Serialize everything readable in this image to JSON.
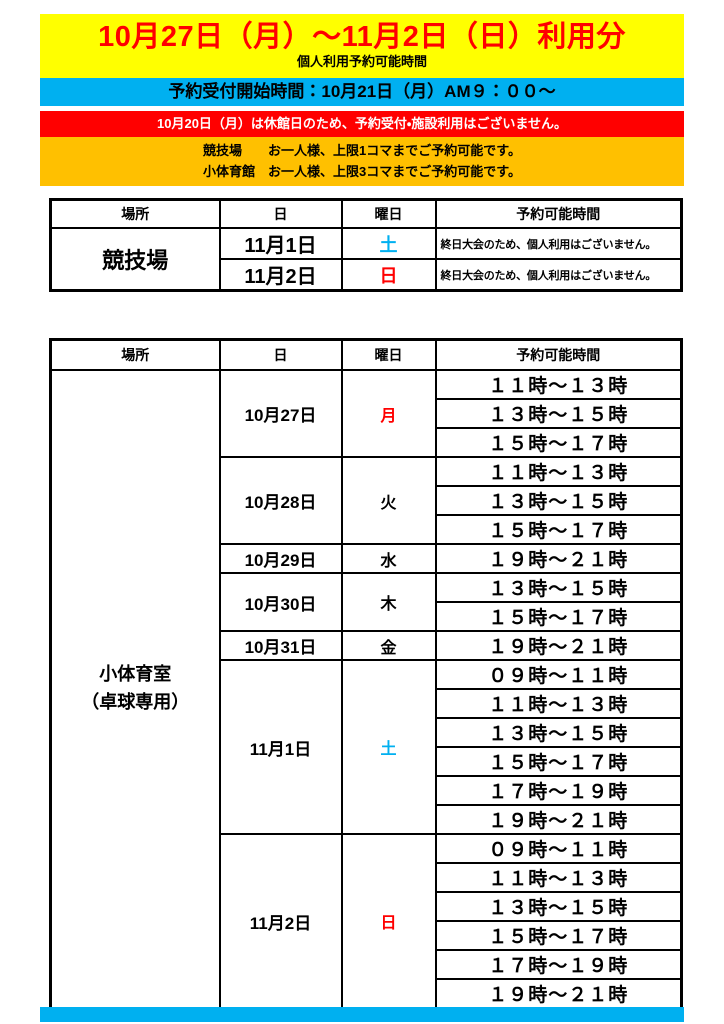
{
  "colors": {
    "banner_yellow": "#FFFF00",
    "band_blue": "#00B0F0",
    "band_red": "#FF0000",
    "band_orange": "#FFC000",
    "title_red": "#FF0000",
    "saturday_blue": "#00B0F0",
    "sunday_red": "#FF0000",
    "monday_red": "#FF0000",
    "weekday_black": "#000000",
    "footer_blue": "#00B0F0"
  },
  "header": {
    "title": "10月27日（月）～11月2日（日）利用分",
    "subtitle": "個人利用予約可能時間",
    "reception_start": "予約受付開始時間：10月21日（月）AM９：００～",
    "closed_notice": "10月20日（月）は休館日のため、予約受付・施設利用はございません。",
    "limit_notes": [
      "競技場　　お一人様、上限1コマまでご予約可能です。",
      "小体育館　お一人様、上限3コマまでご予約可能です。"
    ]
  },
  "tables": [
    {
      "data_name": "stadium-schedule-table",
      "headers": [
        "場所",
        "日",
        "曜日",
        "予約可能時間"
      ],
      "place_lines": [
        "競技場"
      ],
      "slot_class": "note",
      "groups": [
        {
          "date": "11月1日",
          "weekday": "土",
          "weekday_color": "#00B0F0",
          "slots": [
            "終日大会のため、個人利用はございません。"
          ]
        },
        {
          "date": "11月2日",
          "weekday": "日",
          "weekday_color": "#FF0000",
          "slots": [
            "終日大会のため、個人利用はございません。"
          ]
        }
      ]
    },
    {
      "data_name": "small-gym-schedule-table",
      "headers": [
        "場所",
        "日",
        "曜日",
        "予約可能時間"
      ],
      "place_lines": [
        "小体育室",
        "（卓球専用）"
      ],
      "slot_class": "time",
      "groups": [
        {
          "date": "10月27日",
          "weekday": "月",
          "weekday_color": "#FF0000",
          "slots": [
            "１１時～１３時",
            "１３時～１５時",
            "１５時～１７時"
          ]
        },
        {
          "date": "10月28日",
          "weekday": "火",
          "weekday_color": "#000000",
          "slots": [
            "１１時～１３時",
            "１３時～１５時",
            "１５時～１７時"
          ]
        },
        {
          "date": "10月29日",
          "weekday": "水",
          "weekday_color": "#000000",
          "slots": [
            "１９時～２１時"
          ]
        },
        {
          "date": "10月30日",
          "weekday": "木",
          "weekday_color": "#000000",
          "slots": [
            "１３時～１５時",
            "１５時～１７時"
          ]
        },
        {
          "date": "10月31日",
          "weekday": "金",
          "weekday_color": "#000000",
          "slots": [
            "１９時～２１時"
          ]
        },
        {
          "date": "11月1日",
          "weekday": "土",
          "weekday_color": "#00B0F0",
          "slots": [
            "０９時～１１時",
            "１１時～１３時",
            "１３時～１５時",
            "１５時～１７時",
            "１７時～１９時",
            "１９時～２１時"
          ]
        },
        {
          "date": "11月2日",
          "weekday": "日",
          "weekday_color": "#FF0000",
          "slots": [
            "０９時～１１時",
            "１１時～１３時",
            "１３時～１５時",
            "１５時～１７時",
            "１７時～１９時",
            "１９時～２１時"
          ]
        }
      ]
    }
  ]
}
